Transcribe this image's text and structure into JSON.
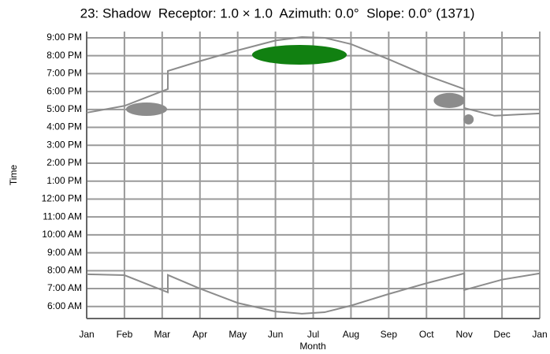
{
  "chart_data": {
    "type": "line",
    "title": "23: Shadow  Receptor: 1.0 × 1.0  Azimuth: 0.0°  Slope: 0.0° (1371)",
    "x_label": "Month",
    "y_label": "Time",
    "xlim": [
      0,
      12
    ],
    "xticks": [
      {
        "value": 0,
        "label": "Jan"
      },
      {
        "value": 1,
        "label": "Feb"
      },
      {
        "value": 2,
        "label": "Mar"
      },
      {
        "value": 3,
        "label": "Apr"
      },
      {
        "value": 4,
        "label": "May"
      },
      {
        "value": 5,
        "label": "Jun"
      },
      {
        "value": 6,
        "label": "Jul"
      },
      {
        "value": 7,
        "label": "Aug"
      },
      {
        "value": 8,
        "label": "Sep"
      },
      {
        "value": 9,
        "label": "Oct"
      },
      {
        "value": 10,
        "label": "Nov"
      },
      {
        "value": 11,
        "label": "Dec"
      },
      {
        "value": 12,
        "label": "Jan"
      }
    ],
    "ylim": [
      5.33,
      21.35
    ],
    "yticks": [
      {
        "value": 6,
        "label": "6:00 AM"
      },
      {
        "value": 7,
        "label": "7:00 AM"
      },
      {
        "value": 8,
        "label": "8:00 AM"
      },
      {
        "value": 9,
        "label": "9:00 AM"
      },
      {
        "value": 10,
        "label": "10:00 AM"
      },
      {
        "value": 11,
        "label": "11:00 AM"
      },
      {
        "value": 12,
        "label": "12:00 PM"
      },
      {
        "value": 13,
        "label": "1:00 PM"
      },
      {
        "value": 14,
        "label": "2:00 PM"
      },
      {
        "value": 15,
        "label": "3:00 PM"
      },
      {
        "value": 16,
        "label": "4:00 PM"
      },
      {
        "value": 17,
        "label": "5:00 PM"
      },
      {
        "value": 18,
        "label": "6:00 PM"
      },
      {
        "value": 19,
        "label": "7:00 PM"
      },
      {
        "value": 20,
        "label": "8:00 PM"
      },
      {
        "value": 21,
        "label": "9:00 PM"
      }
    ],
    "grid": true,
    "series": [
      {
        "color": "#8c8c8c",
        "x": [
          0,
          1,
          2.15,
          2.15,
          3,
          4,
          5,
          5.7,
          6.3,
          7,
          8,
          9,
          10,
          10,
          10.8,
          12
        ],
        "values": [
          16.82,
          17.2,
          18.14,
          19.15,
          19.7,
          20.3,
          20.85,
          21.04,
          21.0,
          20.65,
          19.8,
          18.9,
          18.14,
          17.08,
          16.65,
          16.78
        ]
      },
      {
        "color": "#8c8c8c",
        "x": [
          0,
          1,
          2.15,
          2.15,
          3,
          4,
          5,
          5.7,
          6.3,
          7,
          8,
          9,
          10,
          10,
          11,
          12
        ],
        "values": [
          7.8,
          7.75,
          6.79,
          7.76,
          7.0,
          6.2,
          5.72,
          5.6,
          5.68,
          6.05,
          6.7,
          7.3,
          7.85,
          6.92,
          7.5,
          7.85
        ]
      }
    ],
    "shadow_areas": [
      {
        "color": "#8c8c8c",
        "x": [
          1.04,
          2.13
        ],
        "y": [
          16.64,
          17.39
        ]
      },
      {
        "color": "#118011",
        "x": [
          4.38,
          6.89
        ],
        "y": [
          19.5,
          20.6
        ]
      },
      {
        "color": "#8c8c8c",
        "x": [
          9.19,
          10.02
        ],
        "y": [
          17.08,
          17.92
        ]
      },
      {
        "color": "#8c8c8c",
        "x": [
          9.98,
          10.25
        ],
        "y": [
          16.16,
          16.73
        ]
      }
    ]
  }
}
